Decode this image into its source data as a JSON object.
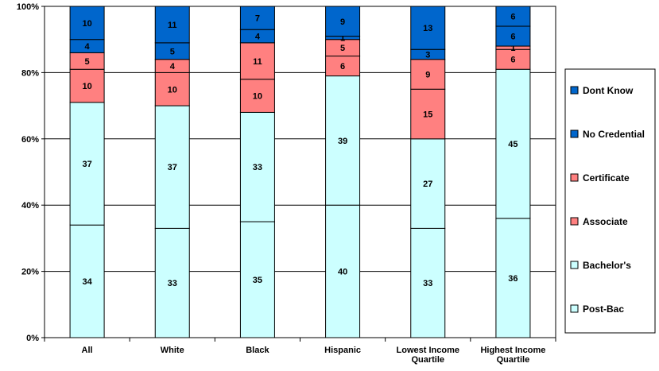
{
  "chart_data": {
    "type": "bar",
    "stacked": true,
    "categories": [
      [
        "All"
      ],
      [
        "White"
      ],
      [
        "Black"
      ],
      [
        "Hispanic"
      ],
      [
        "Lowest Income",
        "Quartile"
      ],
      [
        "Highest Income",
        "Quartile"
      ]
    ],
    "ylim": [
      0,
      100
    ],
    "ytick_labels": [
      "0%",
      "20%",
      "40%",
      "60%",
      "80%",
      "100%"
    ],
    "grid": true,
    "legend_position": "right",
    "series": [
      {
        "name": "Post-Bac",
        "color": "#ccffff",
        "values": [
          34,
          33,
          35,
          40,
          33,
          36
        ]
      },
      {
        "name": "Bachelor's",
        "color": "#ccffff",
        "values": [
          37,
          37,
          33,
          39,
          27,
          45
        ]
      },
      {
        "name": "Associate",
        "color": "#ff8080",
        "values": [
          10,
          10,
          10,
          6,
          15,
          6
        ]
      },
      {
        "name": "Certificate",
        "color": "#ff8080",
        "values": [
          5,
          4,
          11,
          5,
          9,
          1
        ]
      },
      {
        "name": "No Credential",
        "color": "#0066cc",
        "values": [
          4,
          5,
          4,
          1,
          3,
          6
        ]
      },
      {
        "name": "Dont Know",
        "color": "#0066cc",
        "values": [
          10,
          11,
          7,
          9,
          13,
          6
        ]
      }
    ]
  }
}
